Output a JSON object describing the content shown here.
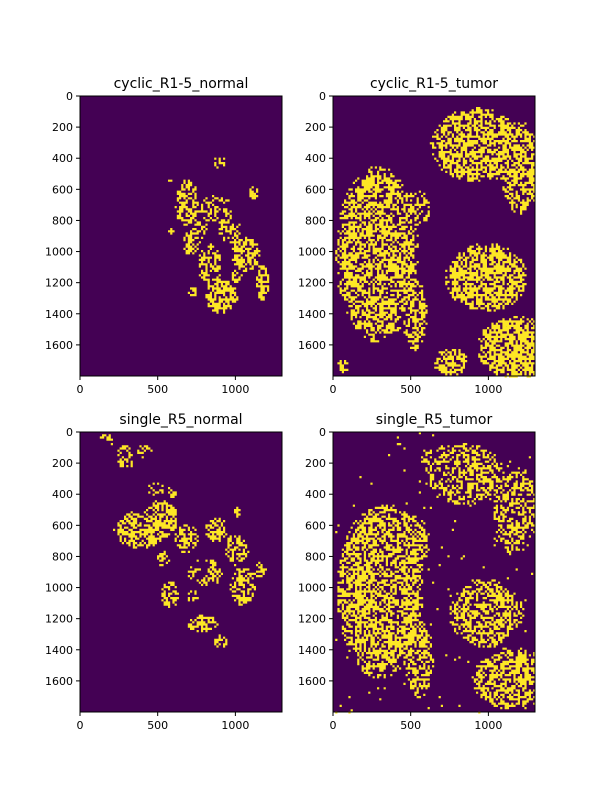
{
  "chart_data": {
    "type": "heatmap",
    "colors": {
      "background": "#440154",
      "foreground": "#fde725"
    },
    "panels": [
      {
        "title": "cyclic_R1-5_normal",
        "xlim": [
          0,
          1300
        ],
        "ylim": [
          1800,
          0
        ],
        "xticks": [
          0,
          500,
          1000
        ],
        "yticks": [
          0,
          200,
          400,
          600,
          800,
          1000,
          1200,
          1400,
          1600
        ],
        "blobs": [
          {
            "cx": 560,
            "cy": 530,
            "rx": 30,
            "ry": 20,
            "density": 0.55
          },
          {
            "cx": 890,
            "cy": 420,
            "rx": 40,
            "ry": 40,
            "density": 0.45
          },
          {
            "cx": 1110,
            "cy": 620,
            "rx": 35,
            "ry": 45,
            "density": 0.75
          },
          {
            "cx": 680,
            "cy": 680,
            "rx": 80,
            "ry": 150,
            "density": 0.55
          },
          {
            "cx": 870,
            "cy": 720,
            "rx": 110,
            "ry": 90,
            "density": 0.35
          },
          {
            "cx": 760,
            "cy": 850,
            "rx": 60,
            "ry": 70,
            "density": 0.5
          },
          {
            "cx": 710,
            "cy": 940,
            "rx": 55,
            "ry": 80,
            "density": 0.65
          },
          {
            "cx": 960,
            "cy": 860,
            "rx": 70,
            "ry": 90,
            "density": 0.45
          },
          {
            "cx": 1060,
            "cy": 1010,
            "rx": 90,
            "ry": 110,
            "density": 0.6
          },
          {
            "cx": 830,
            "cy": 1080,
            "rx": 75,
            "ry": 140,
            "density": 0.55
          },
          {
            "cx": 1170,
            "cy": 1190,
            "rx": 45,
            "ry": 120,
            "density": 0.6
          },
          {
            "cx": 900,
            "cy": 1280,
            "rx": 110,
            "ry": 110,
            "density": 0.7
          },
          {
            "cx": 1000,
            "cy": 1150,
            "rx": 35,
            "ry": 40,
            "density": 0.5
          },
          {
            "cx": 570,
            "cy": 860,
            "rx": 30,
            "ry": 25,
            "density": 0.6
          },
          {
            "cx": 720,
            "cy": 1250,
            "rx": 30,
            "ry": 40,
            "density": 0.55
          }
        ]
      },
      {
        "title": "cyclic_R1-5_tumor",
        "xlim": [
          0,
          1300
        ],
        "ylim": [
          1800,
          0
        ],
        "xticks": [
          0,
          500,
          1000
        ],
        "yticks": [
          0,
          200,
          400,
          600,
          800,
          1000,
          1200,
          1400,
          1600
        ],
        "blobs": [
          {
            "cx": 920,
            "cy": 310,
            "rx": 300,
            "ry": 240,
            "density": 0.62
          },
          {
            "cx": 1200,
            "cy": 450,
            "rx": 130,
            "ry": 300,
            "density": 0.6
          },
          {
            "cx": 280,
            "cy": 1010,
            "rx": 270,
            "ry": 570,
            "density": 0.62
          },
          {
            "cx": 530,
            "cy": 720,
            "rx": 90,
            "ry": 120,
            "density": 0.55
          },
          {
            "cx": 520,
            "cy": 1400,
            "rx": 80,
            "ry": 230,
            "density": 0.55
          },
          {
            "cx": 980,
            "cy": 1160,
            "rx": 265,
            "ry": 220,
            "density": 0.66
          },
          {
            "cx": 750,
            "cy": 1700,
            "rx": 110,
            "ry": 90,
            "density": 0.7
          },
          {
            "cx": 1170,
            "cy": 1610,
            "rx": 250,
            "ry": 200,
            "density": 0.7
          },
          {
            "cx": 60,
            "cy": 1730,
            "rx": 35,
            "ry": 45,
            "density": 0.5
          }
        ]
      },
      {
        "title": "single_R5_normal",
        "xlim": [
          0,
          1300
        ],
        "ylim": [
          1800,
          0
        ],
        "xticks": [
          0,
          500,
          1000
        ],
        "yticks": [
          0,
          200,
          400,
          600,
          800,
          1000,
          1200,
          1400,
          1600
        ],
        "blobs": [
          {
            "cx": 180,
            "cy": 40,
            "rx": 60,
            "ry": 35,
            "density": 0.45
          },
          {
            "cx": 290,
            "cy": 150,
            "rx": 60,
            "ry": 80,
            "density": 0.45
          },
          {
            "cx": 410,
            "cy": 110,
            "rx": 45,
            "ry": 50,
            "density": 0.45
          },
          {
            "cx": 480,
            "cy": 360,
            "rx": 60,
            "ry": 50,
            "density": 0.4
          },
          {
            "cx": 590,
            "cy": 380,
            "rx": 40,
            "ry": 35,
            "density": 0.5
          },
          {
            "cx": 380,
            "cy": 620,
            "rx": 170,
            "ry": 120,
            "density": 0.6
          },
          {
            "cx": 520,
            "cy": 550,
            "rx": 110,
            "ry": 120,
            "density": 0.65
          },
          {
            "cx": 680,
            "cy": 680,
            "rx": 80,
            "ry": 90,
            "density": 0.5
          },
          {
            "cx": 870,
            "cy": 620,
            "rx": 70,
            "ry": 80,
            "density": 0.55
          },
          {
            "cx": 1000,
            "cy": 510,
            "rx": 30,
            "ry": 30,
            "density": 0.6
          },
          {
            "cx": 1000,
            "cy": 750,
            "rx": 80,
            "ry": 100,
            "density": 0.5
          },
          {
            "cx": 530,
            "cy": 810,
            "rx": 40,
            "ry": 50,
            "density": 0.6
          },
          {
            "cx": 570,
            "cy": 1040,
            "rx": 60,
            "ry": 90,
            "density": 0.5
          },
          {
            "cx": 800,
            "cy": 900,
            "rx": 110,
            "ry": 90,
            "density": 0.45
          },
          {
            "cx": 1040,
            "cy": 980,
            "rx": 80,
            "ry": 130,
            "density": 0.55
          },
          {
            "cx": 1150,
            "cy": 880,
            "rx": 40,
            "ry": 50,
            "density": 0.6
          },
          {
            "cx": 780,
            "cy": 1230,
            "rx": 110,
            "ry": 60,
            "density": 0.6
          },
          {
            "cx": 900,
            "cy": 1340,
            "rx": 50,
            "ry": 40,
            "density": 0.6
          },
          {
            "cx": 720,
            "cy": 1050,
            "rx": 40,
            "ry": 40,
            "density": 0.5
          }
        ]
      },
      {
        "title": "single_R5_tumor",
        "xlim": [
          0,
          1300
        ],
        "ylim": [
          1800,
          0
        ],
        "xticks": [
          0,
          500,
          1000
        ],
        "yticks": [
          0,
          200,
          400,
          600,
          800,
          1000,
          1200,
          1400,
          1600
        ],
        "blobs": [
          {
            "cx": 840,
            "cy": 270,
            "rx": 260,
            "ry": 200,
            "density": 0.5
          },
          {
            "cx": 1170,
            "cy": 500,
            "rx": 140,
            "ry": 290,
            "density": 0.45
          },
          {
            "cx": 680,
            "cy": 160,
            "rx": 120,
            "ry": 100,
            "density": 0.45
          },
          {
            "cx": 300,
            "cy": 1020,
            "rx": 280,
            "ry": 560,
            "density": 0.62
          },
          {
            "cx": 450,
            "cy": 700,
            "rx": 170,
            "ry": 200,
            "density": 0.58
          },
          {
            "cx": 550,
            "cy": 1450,
            "rx": 90,
            "ry": 250,
            "density": 0.58
          },
          {
            "cx": 980,
            "cy": 1160,
            "rx": 240,
            "ry": 220,
            "density": 0.55
          },
          {
            "cx": 1150,
            "cy": 1580,
            "rx": 260,
            "ry": 200,
            "density": 0.62
          }
        ],
        "noise": 0.012
      }
    ]
  }
}
